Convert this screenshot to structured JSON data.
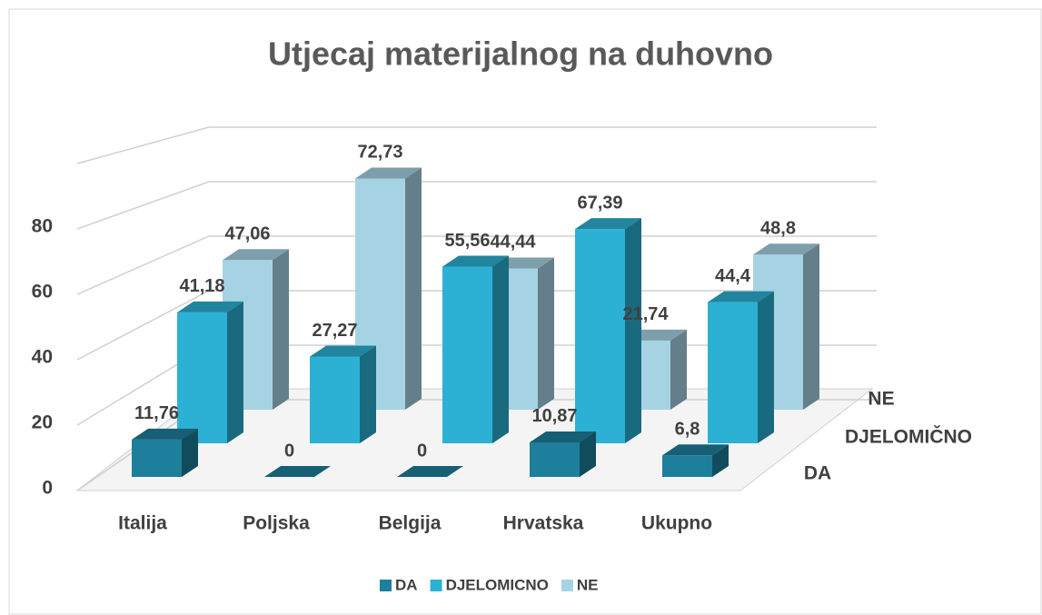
{
  "chart_data": {
    "type": "bar3d",
    "title": "Utjecaj materijalnog na duhovno",
    "categories": [
      "Italija",
      "Poljska",
      "Belgija",
      "Hrvatska",
      "Ukupno"
    ],
    "depth_labels": [
      "DA",
      "DJELOMIČNO",
      "NE"
    ],
    "series": [
      {
        "name": "DA",
        "color": "#1d7f9b",
        "values": [
          11.76,
          0,
          0,
          10.87,
          6.8
        ],
        "value_labels": [
          "11,76",
          "0",
          "0",
          "10,87",
          "6,8"
        ]
      },
      {
        "name": "DJELOMICNO",
        "color": "#2cb1d4",
        "values": [
          41.18,
          27.27,
          55.56,
          67.39,
          44.4
        ],
        "value_labels": [
          "41,18",
          "27,27",
          "55,56",
          "67,39",
          "44,4"
        ]
      },
      {
        "name": "NE",
        "color": "#a6d3e4",
        "values": [
          47.06,
          72.73,
          44.44,
          21.74,
          48.8
        ],
        "value_labels": [
          "47,06",
          "72,73",
          "44,44",
          "21,74",
          "48,8"
        ]
      }
    ],
    "ylim": [
      0,
      100
    ],
    "yticks": [
      0,
      20,
      40,
      60,
      80
    ],
    "grid": true,
    "legend": "bottom"
  }
}
